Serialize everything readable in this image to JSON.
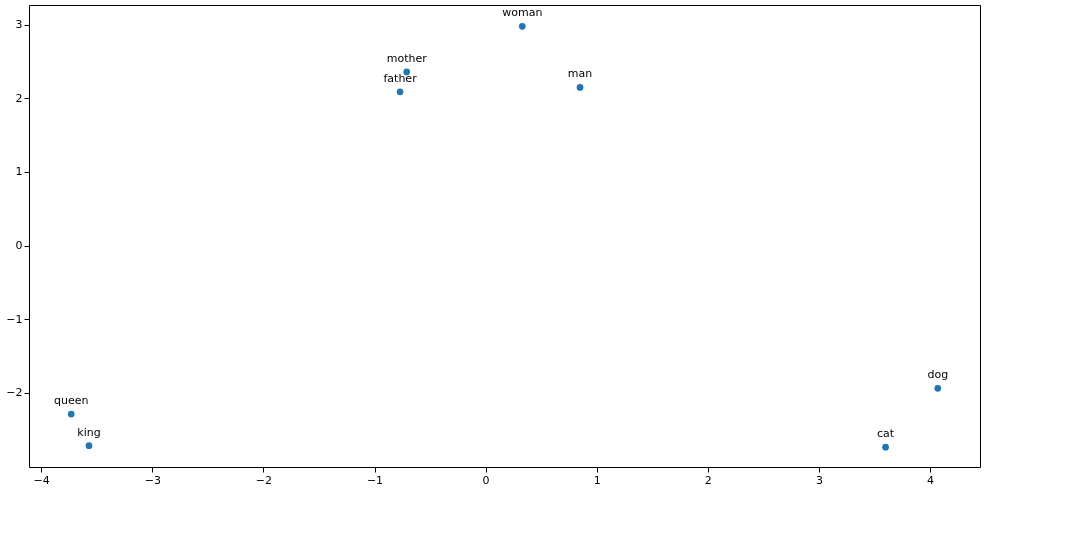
{
  "chart_data": {
    "type": "scatter",
    "x": [
      0.33,
      -0.71,
      -0.77,
      0.85,
      -3.73,
      -3.57,
      4.07,
      3.6
    ],
    "values": [
      2.98,
      2.36,
      2.09,
      2.15,
      -2.29,
      -2.72,
      -1.94,
      -2.74
    ],
    "color": "#1f77b4",
    "marker": "circle",
    "grid": false,
    "xlim": [
      -4.11,
      4.45
    ],
    "xticks": [
      {
        "value": -4,
        "label": "−4"
      },
      {
        "value": -3,
        "label": "−3"
      },
      {
        "value": -2,
        "label": "−2"
      },
      {
        "value": -1,
        "label": "−1"
      },
      0,
      1,
      2,
      3,
      4
    ],
    "ylim": [
      -3.01,
      3.27
    ],
    "yticks": [
      {
        "value": -2,
        "label": "−2"
      },
      {
        "value": -1,
        "label": "−1"
      },
      0,
      1,
      2,
      3
    ],
    "annotations": [
      {
        "text": "woman",
        "x": 0.33,
        "y": 2.98
      },
      {
        "text": "mother",
        "x": -0.71,
        "y": 2.36
      },
      {
        "text": "father",
        "x": -0.77,
        "y": 2.09
      },
      {
        "text": "man",
        "x": 0.85,
        "y": 2.15
      },
      {
        "text": "queen",
        "x": -3.73,
        "y": -2.29
      },
      {
        "text": "king",
        "x": -3.57,
        "y": -2.72
      },
      {
        "text": "dog",
        "x": 4.07,
        "y": -1.94
      },
      {
        "text": "cat",
        "x": 3.6,
        "y": -2.74
      }
    ]
  }
}
